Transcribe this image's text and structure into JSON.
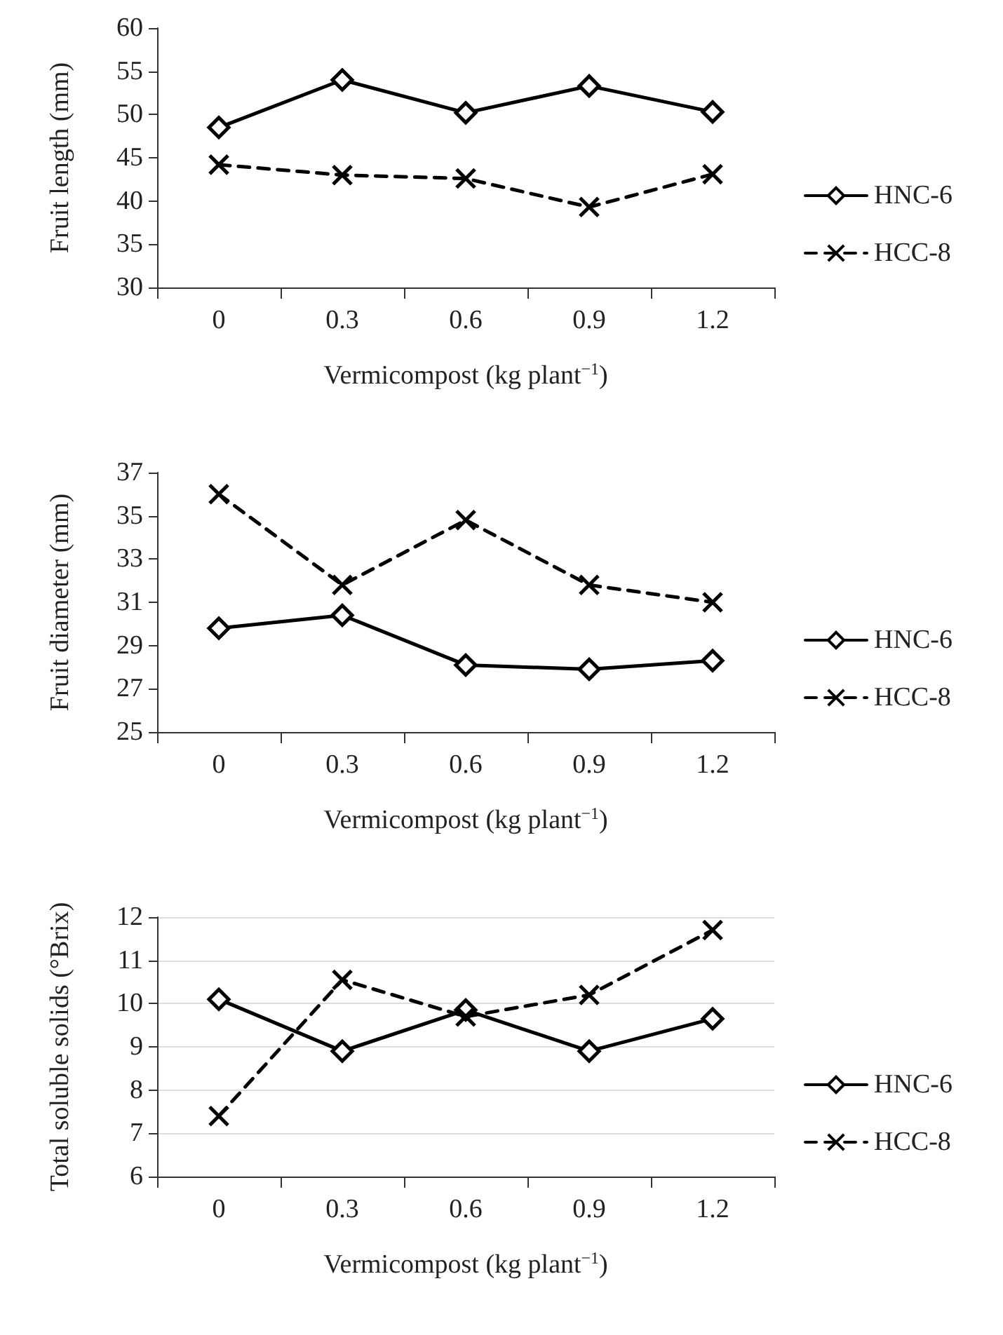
{
  "chart_data": [
    {
      "type": "line",
      "ylabel": "Fruit length (mm)",
      "xlabel": "Vermicompost (kg plant$^{−1}$)",
      "categories": [
        "0",
        "0.3",
        "0.6",
        "0.9",
        "1.2"
      ],
      "ylim": [
        30,
        60
      ],
      "yticks": [
        30,
        35,
        40,
        45,
        50,
        55,
        60
      ],
      "grid": false,
      "legend": "right",
      "series": [
        {
          "name": "HNC-6",
          "color": "#000000",
          "marker": "diamond",
          "line_style": "solid",
          "values": [
            48.5,
            54,
            50.2,
            53.3,
            50.3
          ]
        },
        {
          "name": "HCC-8",
          "color": "#000000",
          "marker": "cross",
          "line_style": "dashed",
          "values": [
            44.2,
            43,
            42.6,
            39.3,
            43.1
          ]
        }
      ]
    },
    {
      "type": "line",
      "ylabel": "Fruit diameter (mm)",
      "xlabel": "Vermicompost (kg plant$^{−1}$)",
      "categories": [
        "0",
        "0.3",
        "0.6",
        "0.9",
        "1.2"
      ],
      "ylim": [
        25,
        37
      ],
      "yticks": [
        25,
        27,
        29,
        31,
        33,
        35,
        37
      ],
      "grid": false,
      "legend": "right",
      "series": [
        {
          "name": "HNC-6",
          "color": "#000000",
          "marker": "diamond",
          "line_style": "solid",
          "values": [
            29.8,
            30.4,
            28.1,
            27.9,
            28.3
          ]
        },
        {
          "name": "HCC-8",
          "color": "#000000",
          "marker": "cross",
          "line_style": "dashed",
          "values": [
            36,
            31.8,
            34.8,
            31.8,
            31
          ]
        }
      ]
    },
    {
      "type": "line",
      "ylabel": "Total soluble solids (°Brix)",
      "xlabel": "Vermicompost (kg plant$^{−1}$)",
      "categories": [
        "0",
        "0.3",
        "0.6",
        "0.9",
        "1.2"
      ],
      "ylim": [
        6,
        12
      ],
      "yticks": [
        6,
        7,
        8,
        9,
        10,
        11,
        12
      ],
      "grid": "y",
      "legend": "right",
      "series": [
        {
          "name": "HNC-6",
          "color": "#000000",
          "marker": "diamond",
          "line_style": "solid",
          "values": [
            10.1,
            8.9,
            9.85,
            8.9,
            9.65
          ]
        },
        {
          "name": "HCC-8",
          "color": "#000000",
          "marker": "cross",
          "line_style": "dashed",
          "values": [
            7.4,
            10.55,
            9.7,
            10.2,
            11.7
          ]
        }
      ]
    }
  ]
}
